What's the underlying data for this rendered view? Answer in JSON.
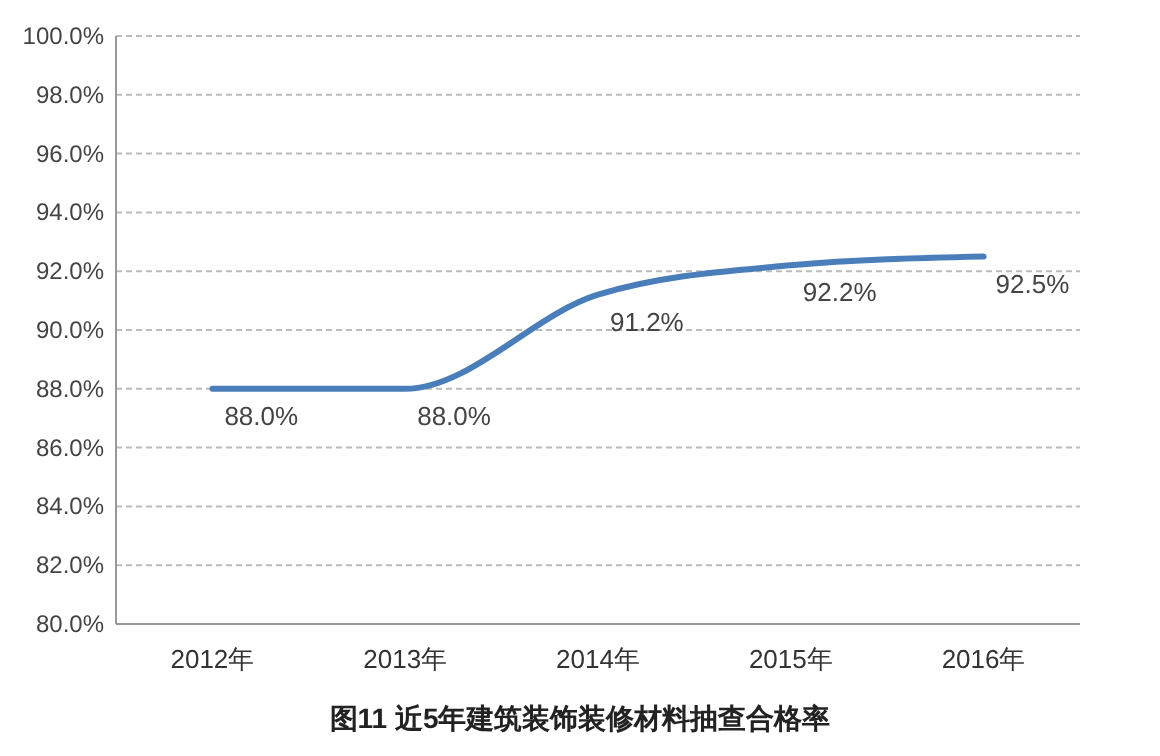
{
  "chart_data": {
    "type": "line",
    "title": "图11 近5年建筑装饰装修材料抽查合格率",
    "categories": [
      "2012年",
      "2013年",
      "2014年",
      "2015年",
      "2016年"
    ],
    "series": [
      {
        "color": "#4a7ebb",
        "values": [
          88.0,
          88.0,
          91.2,
          92.2,
          92.5
        ],
        "value_labels": [
          "88.0%",
          "88.0%",
          "91.2%",
          "92.2%",
          "92.5%"
        ]
      }
    ],
    "ylim": [
      80,
      100
    ],
    "yticks": [
      {
        "value": 80,
        "label": "80.0%"
      },
      {
        "value": 82,
        "label": "82.0%"
      },
      {
        "value": 84,
        "label": "84.0%"
      },
      {
        "value": 86,
        "label": "86.0%"
      },
      {
        "value": 88,
        "label": "88.0%"
      },
      {
        "value": 90,
        "label": "90.0%"
      },
      {
        "value": 92,
        "label": "92.0%"
      },
      {
        "value": 94,
        "label": "94.0%"
      },
      {
        "value": 96,
        "label": "96.0%"
      },
      {
        "value": 98,
        "label": "98.0%"
      },
      {
        "value": 100,
        "label": "100.0%"
      }
    ],
    "grid": "y",
    "marker": "none",
    "line_style": "solid"
  }
}
